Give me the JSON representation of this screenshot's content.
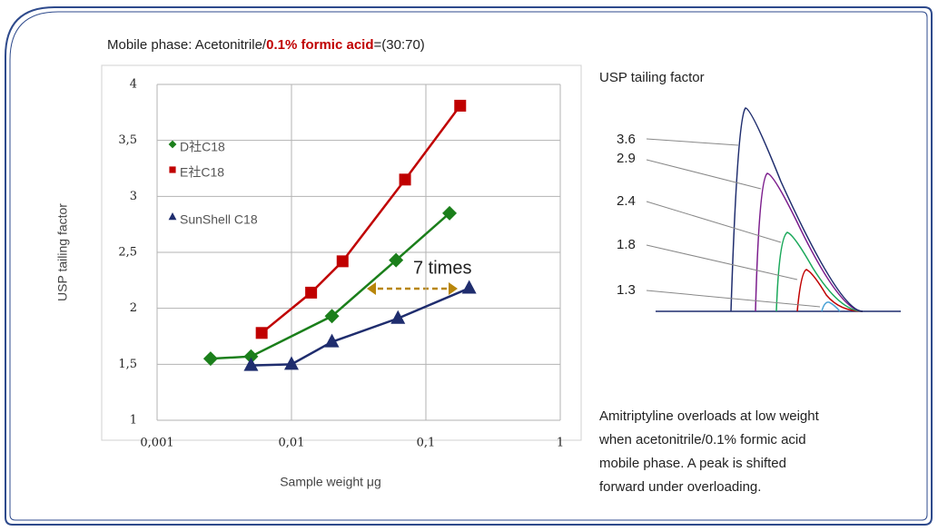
{
  "chart_data": {
    "type": "scatter",
    "header": [
      "Mobile phase: Acetonitrile/",
      "0.1% formic acid",
      "=(30:70)"
    ],
    "x_label": "Sample weight μg",
    "y_label": "USP tailing factor",
    "xscale": "log",
    "xlim": [
      0.001,
      1
    ],
    "xticks": [
      {
        "value": 0.001,
        "label": "0,001"
      },
      {
        "value": 0.01,
        "label": "0,01"
      },
      {
        "value": 0.1,
        "label": "0,1"
      },
      1
    ],
    "ylim": [
      1,
      4
    ],
    "yticks": [
      1,
      {
        "value": 1.5,
        "label": "1,5"
      },
      2,
      {
        "value": 2.5,
        "label": "2,5"
      },
      3,
      {
        "value": 3.5,
        "label": "3,5"
      },
      4
    ],
    "grid": true,
    "series": [
      {
        "name": "D社C18",
        "color": "#1b7f1b",
        "marker": "diamond",
        "x": [
          0.0025,
          0.005,
          0.02,
          0.06,
          0.15
        ],
        "values": [
          1.55,
          1.57,
          1.93,
          2.43,
          2.85
        ]
      },
      {
        "name": "E社C18",
        "color": "#c00000",
        "marker": "square",
        "x": [
          0.006,
          0.014,
          0.024,
          0.07,
          0.18
        ],
        "values": [
          1.78,
          2.14,
          2.42,
          3.15,
          3.81
        ]
      },
      {
        "name": "SunShell C18",
        "color": "#1f2d6e",
        "marker": "triangle",
        "x": [
          0.005,
          0.01,
          0.02,
          0.062,
          0.21
        ],
        "values": [
          1.49,
          1.5,
          1.7,
          1.91,
          2.18
        ]
      }
    ],
    "annotation": "7 times"
  },
  "diagram": {
    "title": "USP tailing factor",
    "peak_labels": [
      "3.6",
      "2.9",
      "2.4",
      "1.8",
      "1.3"
    ],
    "caption": [
      "Amitriptyline overloads at low weight",
      "when acetonitrile/0.1% formic acid",
      "mobile phase. A peak is shifted",
      "forward under overloading."
    ]
  }
}
